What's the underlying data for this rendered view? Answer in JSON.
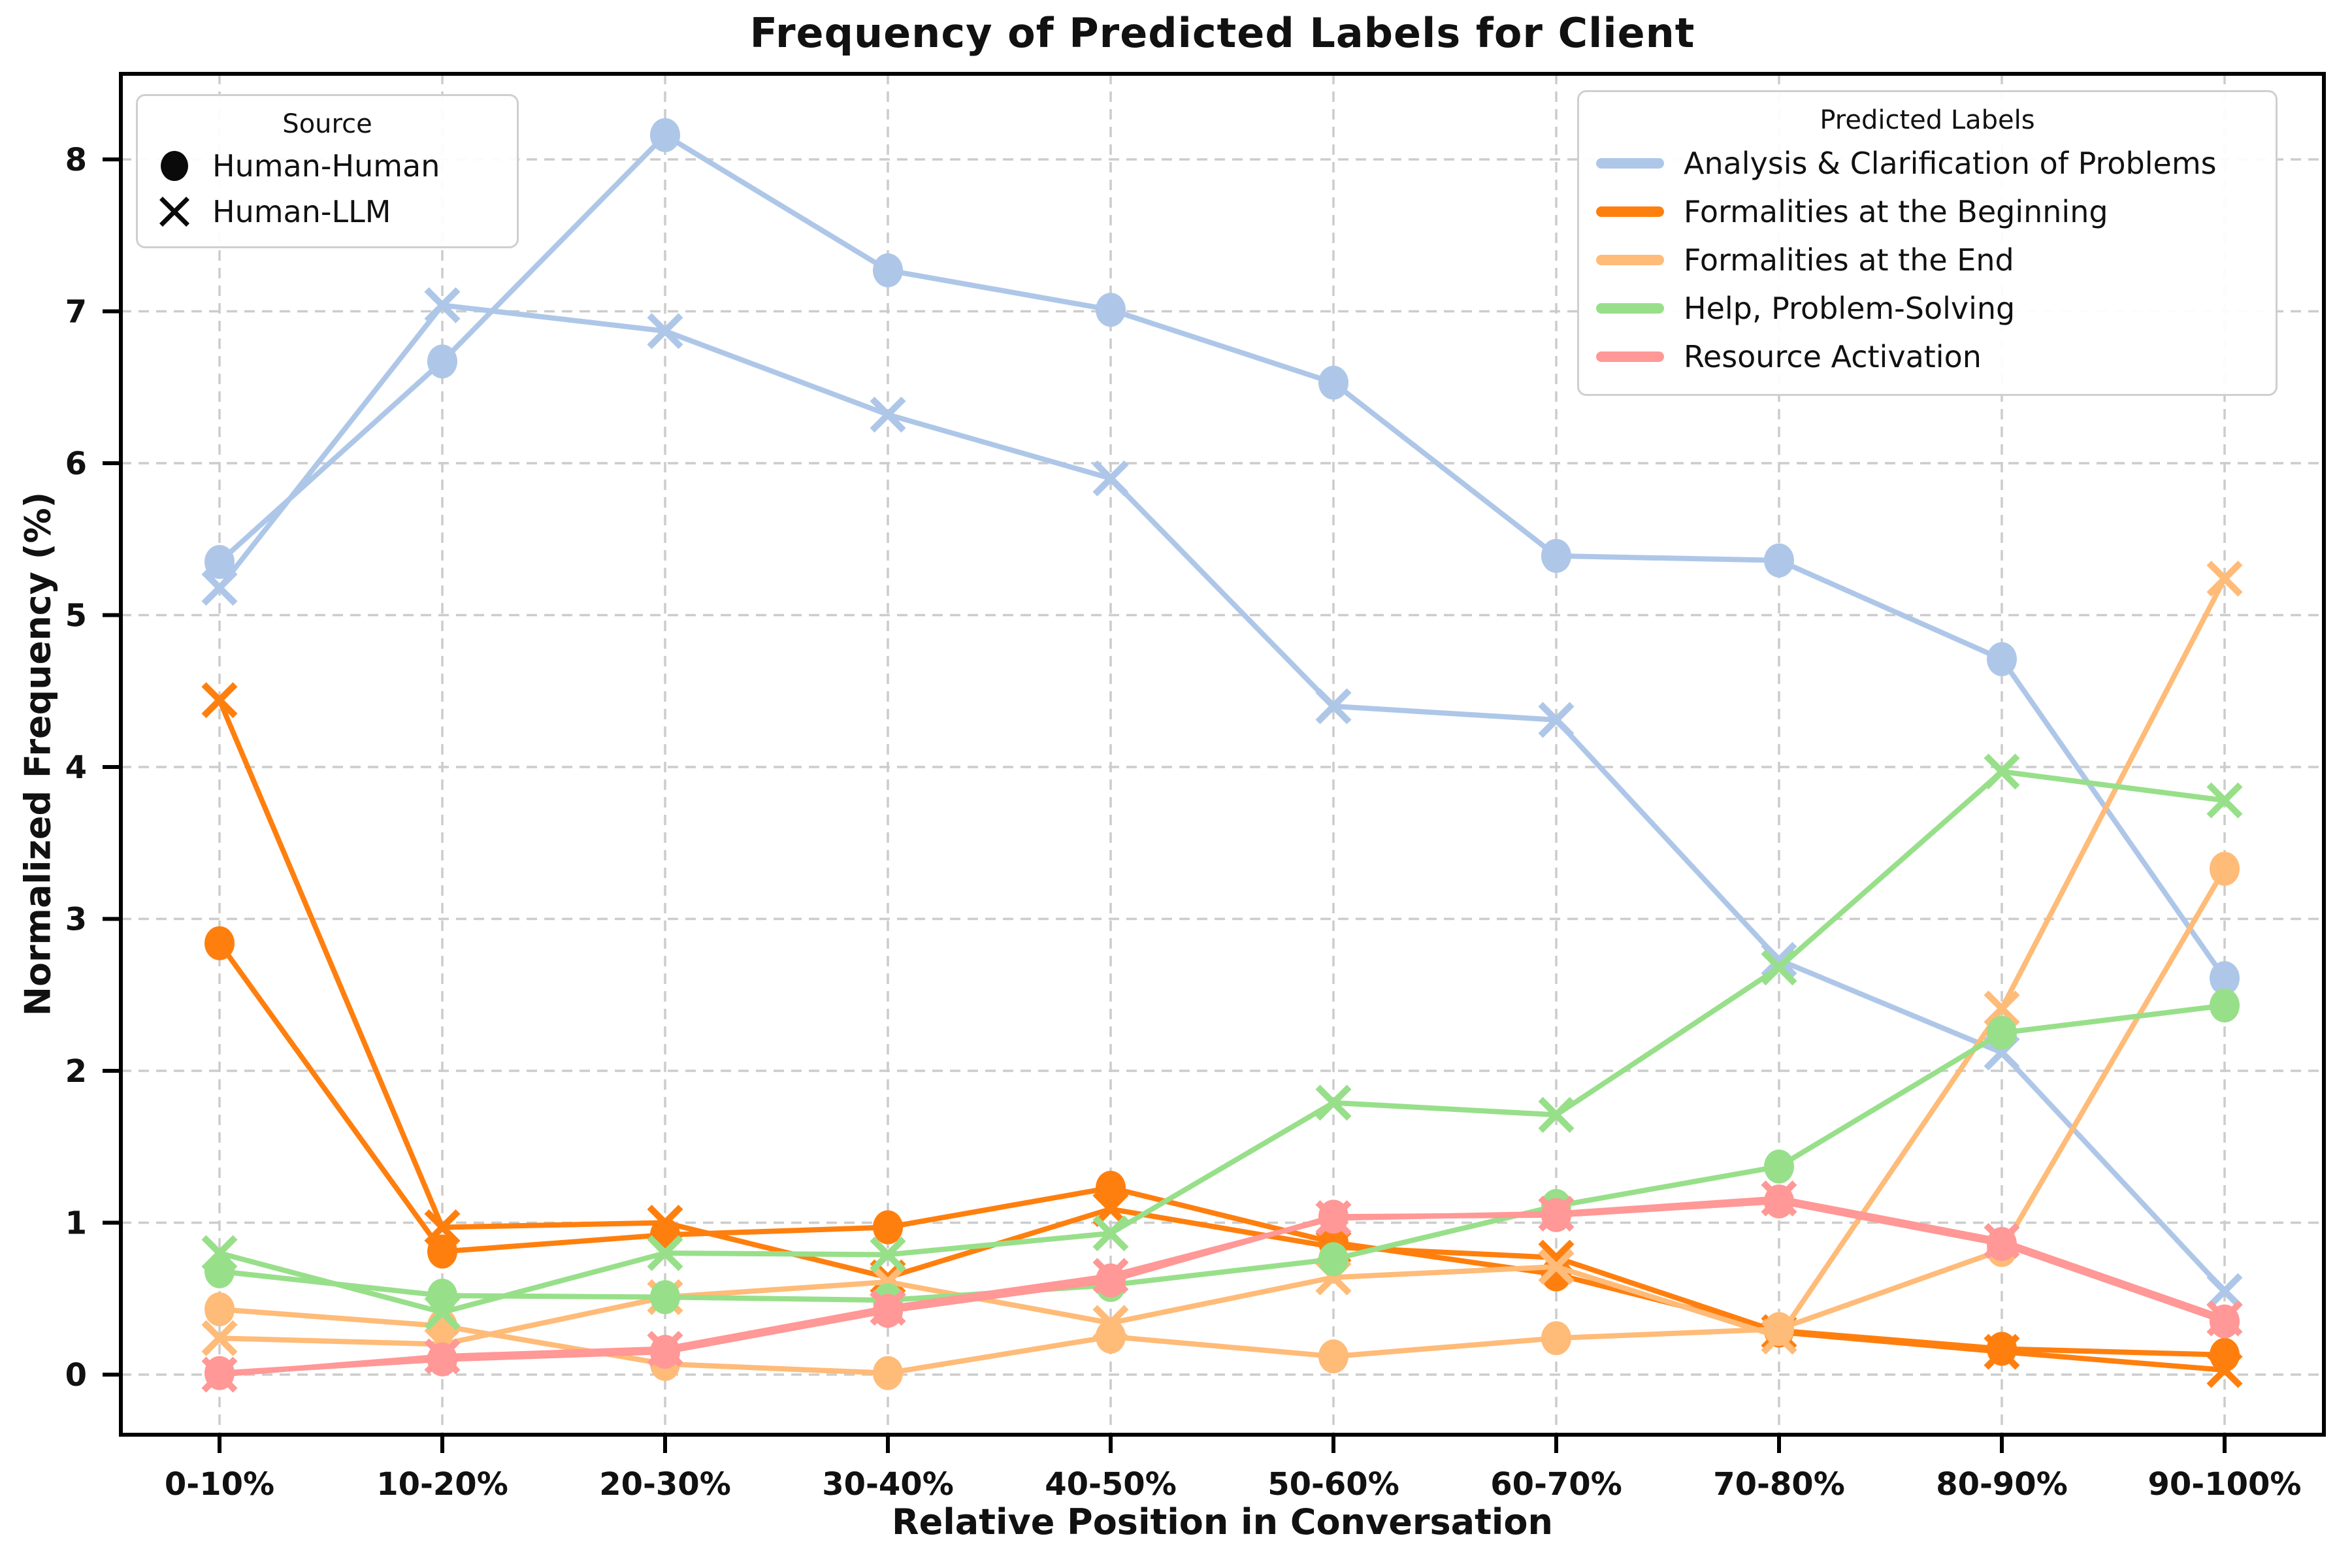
{
  "title": "Frequency of Predicted Labels for Client",
  "axes": {
    "x_label": "Relative Position in Conversation",
    "y_label": "Normalized Frequency (%)",
    "y_ticks": [
      "0",
      "1",
      "2",
      "3",
      "4",
      "5",
      "6",
      "7",
      "8"
    ],
    "x_ticks": [
      "0-10%",
      "10-20%",
      "20-30%",
      "30-40%",
      "40-50%",
      "50-60%",
      "60-70%",
      "70-80%",
      "80-90%",
      "90-100%"
    ]
  },
  "legend_source": {
    "title": "Source",
    "items": [
      {
        "label": "Human-Human",
        "marker": "circle"
      },
      {
        "label": "Human-LLM",
        "marker": "x"
      }
    ]
  },
  "legend_labels": {
    "title": "Predicted Labels",
    "items": [
      {
        "label": "Analysis & Clarification of Problems",
        "color": "#aec7e8"
      },
      {
        "label": "Formalities at the Beginning",
        "color": "#ff7f0e"
      },
      {
        "label": "Formalities at the End",
        "color": "#ffbb78"
      },
      {
        "label": "Help, Problem-Solving",
        "color": "#98df8a"
      },
      {
        "label": "Resource Activation",
        "color": "#ff9896"
      }
    ]
  },
  "chart_data": {
    "type": "line",
    "title": "Frequency of Predicted Labels for Client",
    "xlabel": "Relative Position in Conversation",
    "ylabel": "Normalized Frequency (%)",
    "categories": [
      "0-10%",
      "10-20%",
      "20-30%",
      "30-40%",
      "40-50%",
      "50-60%",
      "60-70%",
      "70-80%",
      "80-90%",
      "90-100%"
    ],
    "y_ticks": [
      0,
      1,
      2,
      3,
      4,
      5,
      6,
      7,
      8
    ],
    "ylim": [
      -0.4,
      8.56
    ],
    "grid": true,
    "grid_style": "dashed",
    "legend_position": "upper right",
    "series": [
      {
        "name": "Analysis & Clarification of Problems",
        "source": "Human-Human",
        "marker": "circle",
        "color": "#aec7e8",
        "values": [
          5.35,
          6.67,
          8.16,
          7.27,
          7.01,
          6.53,
          5.39,
          5.36,
          4.71,
          2.61
        ]
      },
      {
        "name": "Analysis & Clarification of Problems",
        "source": "Human-LLM",
        "marker": "x",
        "color": "#aec7e8",
        "values": [
          5.18,
          7.04,
          6.87,
          6.32,
          5.9,
          4.4,
          4.31,
          2.73,
          2.12,
          0.55
        ]
      },
      {
        "name": "Formalities at the Beginning",
        "source": "Human-Human",
        "marker": "circle",
        "color": "#ff7f0e",
        "values": [
          2.84,
          0.81,
          0.92,
          0.97,
          1.23,
          0.87,
          0.66,
          0.29,
          0.17,
          0.13
        ]
      },
      {
        "name": "Formalities at the Beginning",
        "source": "Human-LLM",
        "marker": "x",
        "color": "#ff7f0e",
        "values": [
          4.44,
          0.97,
          1.0,
          0.64,
          1.09,
          0.84,
          0.77,
          0.28,
          0.15,
          0.03
        ]
      },
      {
        "name": "Formalities at the End",
        "source": "Human-Human",
        "marker": "circle",
        "color": "#ffbb78",
        "values": [
          0.43,
          0.32,
          0.07,
          0.01,
          0.25,
          0.12,
          0.24,
          0.3,
          0.82,
          3.33
        ]
      },
      {
        "name": "Formalities at the End",
        "source": "Human-LLM",
        "marker": "x",
        "color": "#ffbb78",
        "values": [
          0.24,
          0.2,
          0.51,
          0.61,
          0.34,
          0.64,
          0.71,
          0.25,
          2.41,
          5.24
        ]
      },
      {
        "name": "Help, Problem-Solving",
        "source": "Human-Human",
        "marker": "circle",
        "color": "#98df8a",
        "values": [
          0.68,
          0.52,
          0.51,
          0.49,
          0.59,
          0.76,
          1.11,
          1.37,
          2.25,
          2.43
        ]
      },
      {
        "name": "Help, Problem-Solving",
        "source": "Human-LLM",
        "marker": "x",
        "color": "#98df8a",
        "values": [
          0.8,
          0.41,
          0.8,
          0.79,
          0.93,
          1.79,
          1.71,
          2.68,
          3.97,
          3.78
        ]
      },
      {
        "name": "Resource Activation",
        "source": "Human-Human",
        "marker": "circle",
        "color": "#ff9896",
        "values": [
          0.01,
          0.1,
          0.15,
          0.42,
          0.62,
          1.04,
          1.05,
          1.14,
          0.86,
          0.35
        ]
      },
      {
        "name": "Resource Activation",
        "source": "Human-LLM",
        "marker": "x",
        "color": "#ff9896",
        "values": [
          0.0,
          0.12,
          0.17,
          0.44,
          0.65,
          1.03,
          1.06,
          1.16,
          0.88,
          0.37
        ]
      }
    ]
  },
  "style": {
    "grid_color": "#cccccc",
    "spine_color": "#000000",
    "text_color": "#111111",
    "marker_black": "#0a0a0a"
  }
}
